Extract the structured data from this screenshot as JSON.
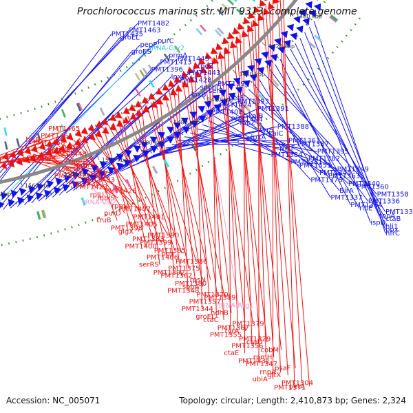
{
  "title": "Prochlorococcus marinus str. MIT 9313, complete genome",
  "footer": {
    "accession": "Accession: NC_005071",
    "topology": "Topology: circular; Length: 2,410,873 bp; Genes: 2,324"
  },
  "colors": {
    "forward_strand": "#1111ee",
    "reverse_strand": "#ee1111",
    "trna_forward": "#33ccee",
    "trna_reverse": "#ee99cc",
    "backbone": "#888888",
    "tick_dots": "#2a8a2a"
  },
  "scale_ticks": [
    "1580 kbp",
    "1560 kbp",
    "1540 kbp",
    "1520 kbp",
    "1500 kbp",
    "1480 kbp",
    "1460 kbp",
    "1440 kbp",
    "1420 kbp",
    "1400 kbp"
  ],
  "forward_labels": [
    {
      "text": "PMT1482",
      "kind": "gene"
    },
    {
      "text": "PMT1463",
      "kind": "gene"
    },
    {
      "text": "groEL",
      "kind": "gene"
    },
    {
      "text": "PMT1435",
      "kind": "gene"
    },
    {
      "text": "purC",
      "kind": "gene"
    },
    {
      "text": "tRNA-Gly2",
      "kind": "trna"
    },
    {
      "text": "pepP",
      "kind": "gene"
    },
    {
      "text": "groES",
      "kind": "gene"
    },
    {
      "text": "PMT1445",
      "kind": "gene"
    },
    {
      "text": "prmA",
      "kind": "gene"
    },
    {
      "text": "PMT1413",
      "kind": "gene"
    },
    {
      "text": "PMT1396",
      "kind": "gene"
    },
    {
      "text": "rpoZ",
      "kind": "gene"
    },
    {
      "text": "PMT1443",
      "kind": "gene"
    },
    {
      "text": "PMT1428",
      "kind": "gene"
    },
    {
      "text": "lpxC",
      "kind": "gene"
    },
    {
      "text": "PMT1394",
      "kind": "gene"
    },
    {
      "text": "serA",
      "kind": "gene"
    },
    {
      "text": "spoIID",
      "kind": "gene"
    },
    {
      "text": "lpxB",
      "kind": "gene"
    },
    {
      "text": "PMT1393",
      "kind": "gene"
    },
    {
      "text": "petF",
      "kind": "gene"
    },
    {
      "text": "PMT1424",
      "kind": "gene"
    },
    {
      "text": "PMT1408",
      "kind": "gene"
    },
    {
      "text": "PMT1391",
      "kind": "gene"
    },
    {
      "text": "kaiB",
      "kind": "gene"
    },
    {
      "text": "fabZ",
      "kind": "gene"
    },
    {
      "text": "PMT1404",
      "kind": "gene"
    },
    {
      "text": "PMT1388",
      "kind": "gene"
    },
    {
      "text": "kaiC",
      "kind": "gene"
    },
    {
      "text": "tyrS",
      "kind": "gene"
    },
    {
      "text": "lpxA",
      "kind": "gene"
    },
    {
      "text": "PMT1387",
      "kind": "gene"
    },
    {
      "text": "PMT1361",
      "kind": "gene"
    },
    {
      "text": "pyrF",
      "kind": "gene"
    },
    {
      "text": "PMT1384",
      "kind": "gene"
    },
    {
      "text": "PMT1395",
      "kind": "gene"
    },
    {
      "text": "PMT1382",
      "kind": "gene"
    },
    {
      "text": "PMT1351",
      "kind": "gene"
    },
    {
      "text": "PMT1381",
      "kind": "gene"
    },
    {
      "text": "PMT1349",
      "kind": "gene"
    },
    {
      "text": "PMT1363",
      "kind": "gene"
    },
    {
      "text": "PMT1345",
      "kind": "gene"
    },
    {
      "text": "PMT1378",
      "kind": "gene"
    },
    {
      "text": "PMT1360",
      "kind": "gene"
    },
    {
      "text": "PMT1340",
      "kind": "gene"
    },
    {
      "text": "BirA",
      "kind": "gene"
    },
    {
      "text": "PMT1337",
      "kind": "gene"
    },
    {
      "text": "PMT1358",
      "kind": "gene"
    },
    {
      "text": "PMT1336",
      "kind": "gene"
    },
    {
      "text": "ribE",
      "kind": "gene"
    },
    {
      "text": "PMT1364",
      "kind": "gene"
    },
    {
      "text": "PMT1335",
      "kind": "gene"
    },
    {
      "text": "ctaB",
      "kind": "gene"
    },
    {
      "text": "topA",
      "kind": "gene"
    },
    {
      "text": "ispD",
      "kind": "gene"
    },
    {
      "text": "ppx",
      "kind": "gene"
    },
    {
      "text": "hli1",
      "kind": "gene"
    },
    {
      "text": "nfrC",
      "kind": "gene"
    }
  ],
  "reverse_labels": [
    {
      "text": "PMT1465",
      "kind": "gene"
    },
    {
      "text": "PMT1461",
      "kind": "gene"
    },
    {
      "text": "PMT1458",
      "kind": "gene"
    },
    {
      "text": "hisB",
      "kind": "gene"
    },
    {
      "text": "nadD",
      "kind": "gene"
    },
    {
      "text": "PMT1448",
      "kind": "gene"
    },
    {
      "text": "PMT1444",
      "kind": "gene"
    },
    {
      "text": "atpB",
      "kind": "gene"
    },
    {
      "text": "pgmI",
      "kind": "gene"
    },
    {
      "text": "murD",
      "kind": "gene"
    },
    {
      "text": "secG",
      "kind": "gene"
    },
    {
      "text": "PMT1432",
      "kind": "gene"
    },
    {
      "text": "psbV",
      "kind": "gene"
    },
    {
      "text": "PMT1433",
      "kind": "gene"
    },
    {
      "text": "PMT1423",
      "kind": "gene"
    },
    {
      "text": "PMT1439",
      "kind": "gene"
    },
    {
      "text": "PMT1426",
      "kind": "gene"
    },
    {
      "text": "mbIS",
      "kind": "gene"
    },
    {
      "text": "rplU",
      "kind": "gene"
    },
    {
      "text": "tRNA-Val2",
      "kind": "trna"
    },
    {
      "text": "PMT1407",
      "kind": "gene"
    },
    {
      "text": "rpmA",
      "kind": "gene"
    },
    {
      "text": "purD",
      "kind": "gene"
    },
    {
      "text": "truB",
      "kind": "gene"
    },
    {
      "text": "PMT1401",
      "kind": "gene"
    },
    {
      "text": "PMT1405",
      "kind": "gene"
    },
    {
      "text": "glgX",
      "kind": "gene"
    },
    {
      "text": "PMT1398",
      "kind": "gene"
    },
    {
      "text": "PMT1390",
      "kind": "gene"
    },
    {
      "text": "PMT1399",
      "kind": "gene"
    },
    {
      "text": "PMT1383",
      "kind": "gene"
    },
    {
      "text": "PMT1400",
      "kind": "gene"
    },
    {
      "text": "pnp",
      "kind": "gene"
    },
    {
      "text": "PMT1385",
      "kind": "gene"
    },
    {
      "text": "PMT1406",
      "kind": "gene"
    },
    {
      "text": "serRS",
      "kind": "gene"
    },
    {
      "text": "PMT1386",
      "kind": "gene"
    },
    {
      "text": "PMT1375",
      "kind": "gene"
    },
    {
      "text": "PMT1362",
      "kind": "gene"
    },
    {
      "text": "PMT1392",
      "kind": "gene"
    },
    {
      "text": "rpsN",
      "kind": "gene"
    },
    {
      "text": "sppA",
      "kind": "gene"
    },
    {
      "text": "PMT1380",
      "kind": "gene"
    },
    {
      "text": "PMT1348",
      "kind": "gene"
    },
    {
      "text": "PMT1389",
      "kind": "gene"
    },
    {
      "text": "PMT1370",
      "kind": "gene"
    },
    {
      "text": "PMT1357",
      "kind": "gene"
    },
    {
      "text": "PMT1344",
      "kind": "gene"
    },
    {
      "text": "tRNA-Arg1",
      "kind": "trna"
    },
    {
      "text": "ndhB",
      "kind": "gene"
    },
    {
      "text": "ctaC",
      "kind": "gene"
    },
    {
      "text": "groEL",
      "kind": "gene"
    },
    {
      "text": "PMT1379",
      "kind": "gene"
    },
    {
      "text": "tyrA",
      "kind": "gene"
    },
    {
      "text": "PMT1367",
      "kind": "gene"
    },
    {
      "text": "PMT1355",
      "kind": "gene"
    },
    {
      "text": "ctaD",
      "kind": "gene"
    },
    {
      "text": "PMT1329",
      "kind": "gene"
    },
    {
      "text": "PMT1356",
      "kind": "gene"
    },
    {
      "text": "ctaE",
      "kind": "gene"
    },
    {
      "text": "cobM",
      "kind": "gene"
    },
    {
      "text": "rpmH",
      "kind": "gene"
    },
    {
      "text": "PMT1347",
      "kind": "gene"
    },
    {
      "text": "PMT1331",
      "kind": "gene"
    },
    {
      "text": "psaF",
      "kind": "gene"
    },
    {
      "text": "gltX",
      "kind": "gene"
    },
    {
      "text": "rnpA",
      "kind": "gene"
    },
    {
      "text": "ubiA",
      "kind": "gene"
    },
    {
      "text": "petA",
      "kind": "gene"
    },
    {
      "text": "PMT1304",
      "kind": "gene"
    },
    {
      "text": "PMT1371",
      "kind": "gene"
    }
  ]
}
